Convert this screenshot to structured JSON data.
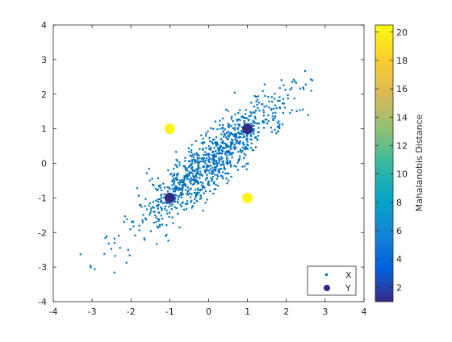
{
  "chart_data": {
    "type": "scatter",
    "xlim": [
      -4,
      4
    ],
    "ylim": [
      -4,
      4
    ],
    "xticks": [
      "-4",
      "-3",
      "-2",
      "-1",
      "0",
      "1",
      "2",
      "3",
      "4"
    ],
    "yticks": [
      "-4",
      "-3",
      "-2",
      "-1",
      "0",
      "1",
      "2",
      "3",
      "4"
    ],
    "grid": false,
    "legend_placement": "bottom-right",
    "series": [
      {
        "name": "X",
        "marker": "small-square",
        "color": "#0072BD",
        "distribution": {
          "count": 1000,
          "mean": [
            0,
            0
          ],
          "covariance": [
            [
              1,
              0.9
            ],
            [
              0.9,
              1
            ]
          ]
        }
      },
      {
        "name": "Y",
        "marker": "filled-circle",
        "points": [
          {
            "x": 1,
            "y": 1,
            "value": 1.0
          },
          {
            "x": -1,
            "y": -1,
            "value": 1.0
          },
          {
            "x": -1,
            "y": 1,
            "value": 20.2
          },
          {
            "x": 1,
            "y": -1,
            "value": 20.2
          }
        ]
      }
    ],
    "colorbar": {
      "label": "Mahalanobis Distance",
      "range": [
        1,
        20.5
      ],
      "ticks": [
        "2",
        "4",
        "6",
        "8",
        "10",
        "12",
        "14",
        "16",
        "18",
        "20"
      ],
      "colormap": "parula",
      "stops": [
        "#352a87",
        "#0363e1",
        "#1485d4",
        "#06a7c6",
        "#38b99e",
        "#92bf73",
        "#d9ba56",
        "#fcce2e",
        "#f9fb0e"
      ]
    }
  }
}
